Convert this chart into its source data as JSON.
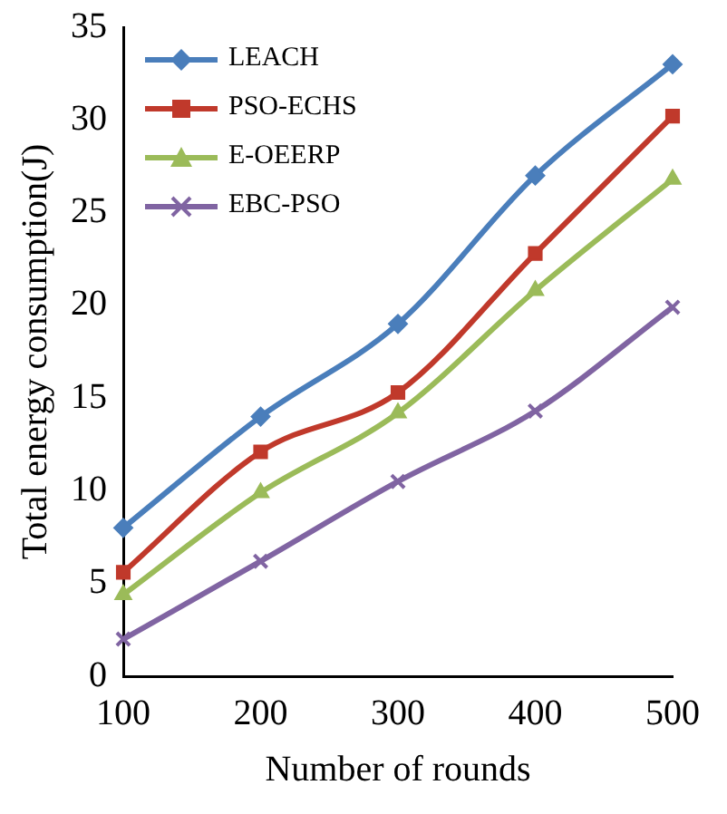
{
  "chart_data": {
    "type": "line",
    "xlabel": "Number of rounds",
    "ylabel": "Total energy consumption(J)",
    "categories": [
      "100",
      "200",
      "300",
      "400",
      "500"
    ],
    "series": [
      {
        "name": "LEACH",
        "color": "#4a7ebb",
        "marker": "diamond",
        "values": [
          8,
          14,
          19,
          27,
          33
        ]
      },
      {
        "name": "PSO-ECHS",
        "color": "#c0392b",
        "marker": "square",
        "values": [
          5.6,
          12.1,
          15.3,
          22.8,
          30.2
        ]
      },
      {
        "name": "E-OEERP",
        "color": "#9bbb59",
        "marker": "triangle",
        "values": [
          4.4,
          9.9,
          14.2,
          20.8,
          26.8
        ]
      },
      {
        "name": "EBC-PSO",
        "color": "#8064a2",
        "marker": "cross",
        "values": [
          2,
          6.2,
          10.5,
          14.3,
          19.9
        ]
      }
    ],
    "ylim": [
      0,
      35
    ],
    "yticks": [
      0,
      5,
      10,
      15,
      20,
      25,
      30,
      35
    ],
    "grid": false,
    "legend": "top left",
    "line_style": "solid"
  }
}
